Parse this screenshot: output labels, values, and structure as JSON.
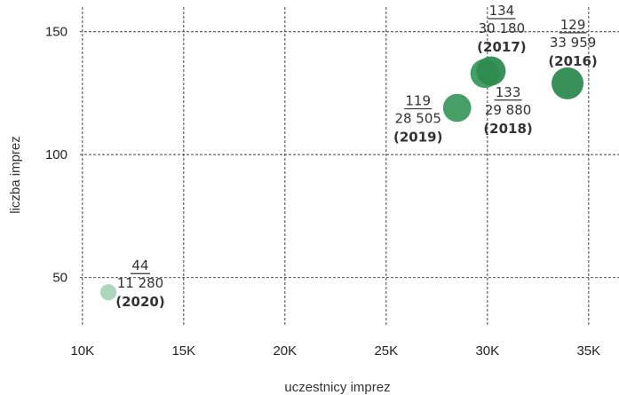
{
  "chart_data": {
    "type": "scatter",
    "xlabel": "uczestnicy imprez",
    "ylabel": "liczba imprez",
    "xlim": [
      9000,
      36500
    ],
    "ylim": [
      30,
      160
    ],
    "x_ticks": [
      10000,
      15000,
      20000,
      25000,
      30000,
      35000
    ],
    "x_tick_labels": [
      "10K",
      "15K",
      "20K",
      "25K",
      "30K",
      "35K"
    ],
    "y_ticks": [
      50,
      100,
      150
    ],
    "y_tick_labels": [
      "50",
      "100",
      "150"
    ],
    "grid": true,
    "points": [
      {
        "year": "(2020)",
        "x": 11280,
        "y": 44,
        "events_label": "44",
        "participants_label": "11 280",
        "color": "#a8d5b8"
      },
      {
        "year": "(2019)",
        "x": 28505,
        "y": 119,
        "events_label": "119",
        "participants_label": "28 505",
        "color": "#3d9a5f"
      },
      {
        "year": "(2018)",
        "x": 29880,
        "y": 133,
        "events_label": "133",
        "participants_label": "29 880",
        "color": "#3a9a5c"
      },
      {
        "year": "(2017)",
        "x": 30180,
        "y": 134,
        "events_label": "134",
        "participants_label": "30 180",
        "color": "#2e8b50"
      },
      {
        "year": "(2016)",
        "x": 33959,
        "y": 129,
        "events_label": "129",
        "participants_label": "33 959",
        "color": "#2e8b50"
      }
    ]
  }
}
